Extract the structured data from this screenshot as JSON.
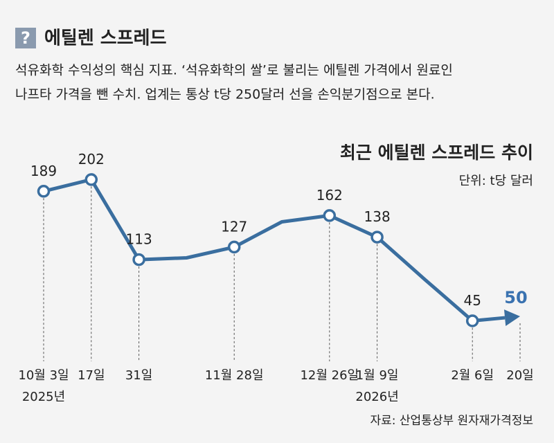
{
  "header": {
    "icon": "?",
    "title": "에틸렌 스프레드",
    "description": [
      "석유화학 수익성의 핵심 지표. ‘석유화학의 쌀’로 불리는 에틸렌 가격에서 원료인",
      "나프타 가격을 뺀 수치. 업계는 통상 t당 250달러 선을 손익분기점으로 본다."
    ]
  },
  "chart_data": {
    "type": "line",
    "title": "최근 에틸렌 스프레드 추이",
    "unit": "단위: t당 달러",
    "categories": [
      "10월 3일",
      "17일",
      "31일",
      null,
      "11월 28일",
      null,
      "12월 26일",
      "1월 9일",
      null,
      "2월 6일",
      "20일"
    ],
    "years": [
      "2025년",
      null,
      null,
      null,
      null,
      null,
      null,
      "2026년",
      null,
      null,
      null
    ],
    "values": [
      189,
      202,
      113,
      115,
      127,
      155,
      162,
      138,
      91,
      45,
      50
    ],
    "color": "#3a6e9f",
    "highlight_color": "#3a72b0",
    "ylim": [
      0,
      250
    ],
    "source": "자료: 산업통상부 원자재가격정보"
  }
}
